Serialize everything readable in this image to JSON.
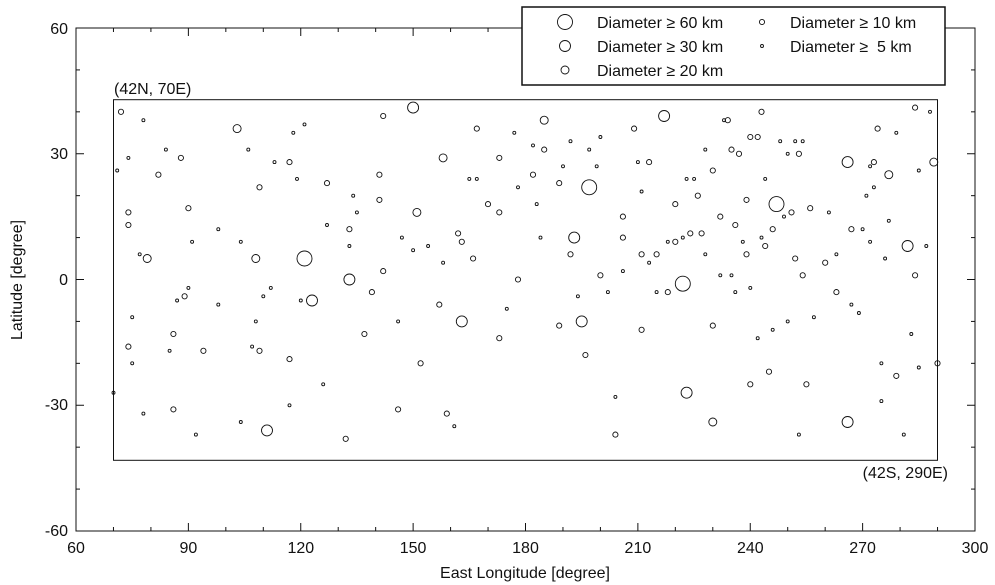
{
  "chart_data": {
    "type": "scatter",
    "title": "",
    "xlabel": "East Longitude [degree]",
    "ylabel": "Latitude [degree]",
    "xlim": [
      60,
      300
    ],
    "ylim": [
      -60,
      60
    ],
    "xticks": [
      60,
      90,
      120,
      150,
      180,
      210,
      240,
      270,
      300
    ],
    "yticks": [
      -60,
      -30,
      0,
      30,
      60
    ],
    "xtick_labels": [
      "60",
      "90",
      "120",
      "150",
      "180",
      "210",
      "240",
      "270",
      "300"
    ],
    "ytick_labels": [
      "-60",
      "-30",
      "0",
      "30",
      "60"
    ],
    "grid": false,
    "legend_position": "top-right",
    "region": {
      "lon": [
        70,
        290
      ],
      "lat": [
        -42,
        42
      ],
      "nw_label": "(42N, 70E)",
      "se_label": "(42S, 290E)"
    },
    "legend": [
      {
        "label": "Diameter ≥ 60 km",
        "min_diameter_km": 60
      },
      {
        "label": "Diameter ≥ 30 km",
        "min_diameter_km": 30
      },
      {
        "label": "Diameter ≥ 20 km",
        "min_diameter_km": 20
      },
      {
        "label": "Diameter ≥ 10 km",
        "min_diameter_km": 10
      },
      {
        "label": "Diameter ≥  5 km",
        "min_diameter_km": 5
      }
    ],
    "series": [
      {
        "min_diameter_km": 60,
        "points": [
          [
            121,
            5
          ],
          [
            197,
            22
          ],
          [
            222,
            -1
          ],
          [
            247,
            18
          ]
        ]
      },
      {
        "min_diameter_km": 30,
        "points": [
          [
            150,
            41
          ],
          [
            123,
            -5
          ],
          [
            111,
            -36
          ],
          [
            133,
            0
          ],
          [
            163,
            -10
          ],
          [
            193,
            10
          ],
          [
            195,
            -10
          ],
          [
            217,
            39
          ],
          [
            223,
            -27
          ],
          [
            266,
            28
          ],
          [
            282,
            8
          ],
          [
            266,
            -34
          ]
        ]
      },
      {
        "min_diameter_km": 20,
        "points": [
          [
            79,
            5
          ],
          [
            103,
            36
          ],
          [
            108,
            5
          ],
          [
            151,
            16
          ],
          [
            158,
            29
          ],
          [
            185,
            38
          ],
          [
            230,
            -34
          ],
          [
            277,
            25
          ],
          [
            289,
            28
          ]
        ]
      },
      {
        "min_diameter_km": 10,
        "points": [
          [
            72,
            40
          ],
          [
            74,
            16
          ],
          [
            74,
            13
          ],
          [
            74,
            -16
          ],
          [
            82,
            25
          ],
          [
            86,
            -31
          ],
          [
            86,
            -13
          ],
          [
            88,
            29
          ],
          [
            89,
            -4
          ],
          [
            90,
            17
          ],
          [
            94,
            -17
          ],
          [
            109,
            22
          ],
          [
            109,
            -17
          ],
          [
            117,
            28
          ],
          [
            117,
            -19
          ],
          [
            127,
            23
          ],
          [
            132,
            -38
          ],
          [
            133,
            12
          ],
          [
            137,
            -13
          ],
          [
            139,
            -3
          ],
          [
            141,
            25
          ],
          [
            141,
            19
          ],
          [
            142,
            2
          ],
          [
            142,
            39
          ],
          [
            146,
            -31
          ],
          [
            152,
            -20
          ],
          [
            157,
            -6
          ],
          [
            159,
            -32
          ],
          [
            162,
            11
          ],
          [
            163,
            9
          ],
          [
            166,
            5
          ],
          [
            167,
            36
          ],
          [
            170,
            18
          ],
          [
            173,
            16
          ],
          [
            173,
            29
          ],
          [
            173,
            -14
          ],
          [
            178,
            0
          ],
          [
            182,
            25
          ],
          [
            185,
            31
          ],
          [
            189,
            23
          ],
          [
            189,
            -11
          ],
          [
            192,
            6
          ],
          [
            196,
            -18
          ],
          [
            200,
            1
          ],
          [
            204,
            -37
          ],
          [
            206,
            15
          ],
          [
            206,
            10
          ],
          [
            209,
            36
          ],
          [
            211,
            -12
          ],
          [
            211,
            6
          ],
          [
            213,
            28
          ],
          [
            215,
            6
          ],
          [
            218,
            -3
          ],
          [
            220,
            18
          ],
          [
            220,
            9
          ],
          [
            224,
            11
          ],
          [
            226,
            20
          ],
          [
            227,
            11
          ],
          [
            230,
            26
          ],
          [
            230,
            -11
          ],
          [
            232,
            15
          ],
          [
            234,
            38
          ],
          [
            235,
            31
          ],
          [
            236,
            13
          ],
          [
            237,
            30
          ],
          [
            239,
            6
          ],
          [
            239,
            19
          ],
          [
            240,
            34
          ],
          [
            240,
            -25
          ],
          [
            242,
            34
          ],
          [
            243,
            40
          ],
          [
            244,
            8
          ],
          [
            245,
            -22
          ],
          [
            246,
            12
          ],
          [
            252,
            5
          ],
          [
            251,
            16
          ],
          [
            253,
            30
          ],
          [
            254,
            1
          ],
          [
            255,
            -25
          ],
          [
            256,
            17
          ],
          [
            260,
            4
          ],
          [
            263,
            -3
          ],
          [
            267,
            12
          ],
          [
            273,
            28
          ],
          [
            274,
            36
          ],
          [
            279,
            -23
          ],
          [
            284,
            1
          ],
          [
            284,
            41
          ],
          [
            290,
            -20
          ]
        ]
      },
      {
        "min_diameter_km": 5,
        "points": [
          [
            70,
            -27
          ],
          [
            71,
            26
          ],
          [
            74,
            29
          ],
          [
            75,
            -20
          ],
          [
            75,
            -9
          ],
          [
            77,
            6
          ],
          [
            78,
            38
          ],
          [
            78,
            -32
          ],
          [
            84,
            31
          ],
          [
            85,
            -17
          ],
          [
            87,
            -5
          ],
          [
            90,
            -2
          ],
          [
            91,
            9
          ],
          [
            92,
            -37
          ],
          [
            98,
            12
          ],
          [
            98,
            -6
          ],
          [
            104,
            -34
          ],
          [
            104,
            9
          ],
          [
            106,
            31
          ],
          [
            107,
            -16
          ],
          [
            108,
            -10
          ],
          [
            110,
            -4
          ],
          [
            112,
            -2
          ],
          [
            113,
            28
          ],
          [
            117,
            -30
          ],
          [
            118,
            35
          ],
          [
            119,
            24
          ],
          [
            120,
            -5
          ],
          [
            121,
            37
          ],
          [
            126,
            -25
          ],
          [
            127,
            13
          ],
          [
            133,
            8
          ],
          [
            134,
            20
          ],
          [
            135,
            16
          ],
          [
            146,
            -10
          ],
          [
            147,
            10
          ],
          [
            150,
            7
          ],
          [
            154,
            8
          ],
          [
            158,
            4
          ],
          [
            161,
            -35
          ],
          [
            165,
            24
          ],
          [
            167,
            24
          ],
          [
            175,
            -7
          ],
          [
            177,
            35
          ],
          [
            178,
            22
          ],
          [
            182,
            32
          ],
          [
            183,
            18
          ],
          [
            184,
            10
          ],
          [
            190,
            27
          ],
          [
            192,
            33
          ],
          [
            194,
            -4
          ],
          [
            197,
            31
          ],
          [
            199,
            27
          ],
          [
            200,
            34
          ],
          [
            202,
            -3
          ],
          [
            204,
            -28
          ],
          [
            206,
            2
          ],
          [
            210,
            28
          ],
          [
            211,
            21
          ],
          [
            213,
            4
          ],
          [
            215,
            -3
          ],
          [
            218,
            9
          ],
          [
            222,
            10
          ],
          [
            223,
            24
          ],
          [
            225,
            24
          ],
          [
            228,
            31
          ],
          [
            228,
            6
          ],
          [
            232,
            1
          ],
          [
            233,
            38
          ],
          [
            235,
            1
          ],
          [
            236,
            -3
          ],
          [
            238,
            9
          ],
          [
            240,
            -2
          ],
          [
            242,
            -14
          ],
          [
            243,
            10
          ],
          [
            244,
            24
          ],
          [
            246,
            -12
          ],
          [
            248,
            33
          ],
          [
            249,
            15
          ],
          [
            250,
            -10
          ],
          [
            250,
            30
          ],
          [
            252,
            33
          ],
          [
            253,
            -37
          ],
          [
            254,
            33
          ],
          [
            257,
            -9
          ],
          [
            261,
            16
          ],
          [
            263,
            6
          ],
          [
            267,
            -6
          ],
          [
            269,
            -8
          ],
          [
            270,
            12
          ],
          [
            271,
            20
          ],
          [
            272,
            9
          ],
          [
            272,
            27
          ],
          [
            273,
            22
          ],
          [
            275,
            -20
          ],
          [
            275,
            -29
          ],
          [
            276,
            5
          ],
          [
            277,
            14
          ],
          [
            279,
            35
          ],
          [
            281,
            -37
          ],
          [
            283,
            -13
          ],
          [
            285,
            26
          ],
          [
            285,
            -21
          ],
          [
            287,
            8
          ],
          [
            288,
            40
          ]
        ]
      }
    ]
  }
}
